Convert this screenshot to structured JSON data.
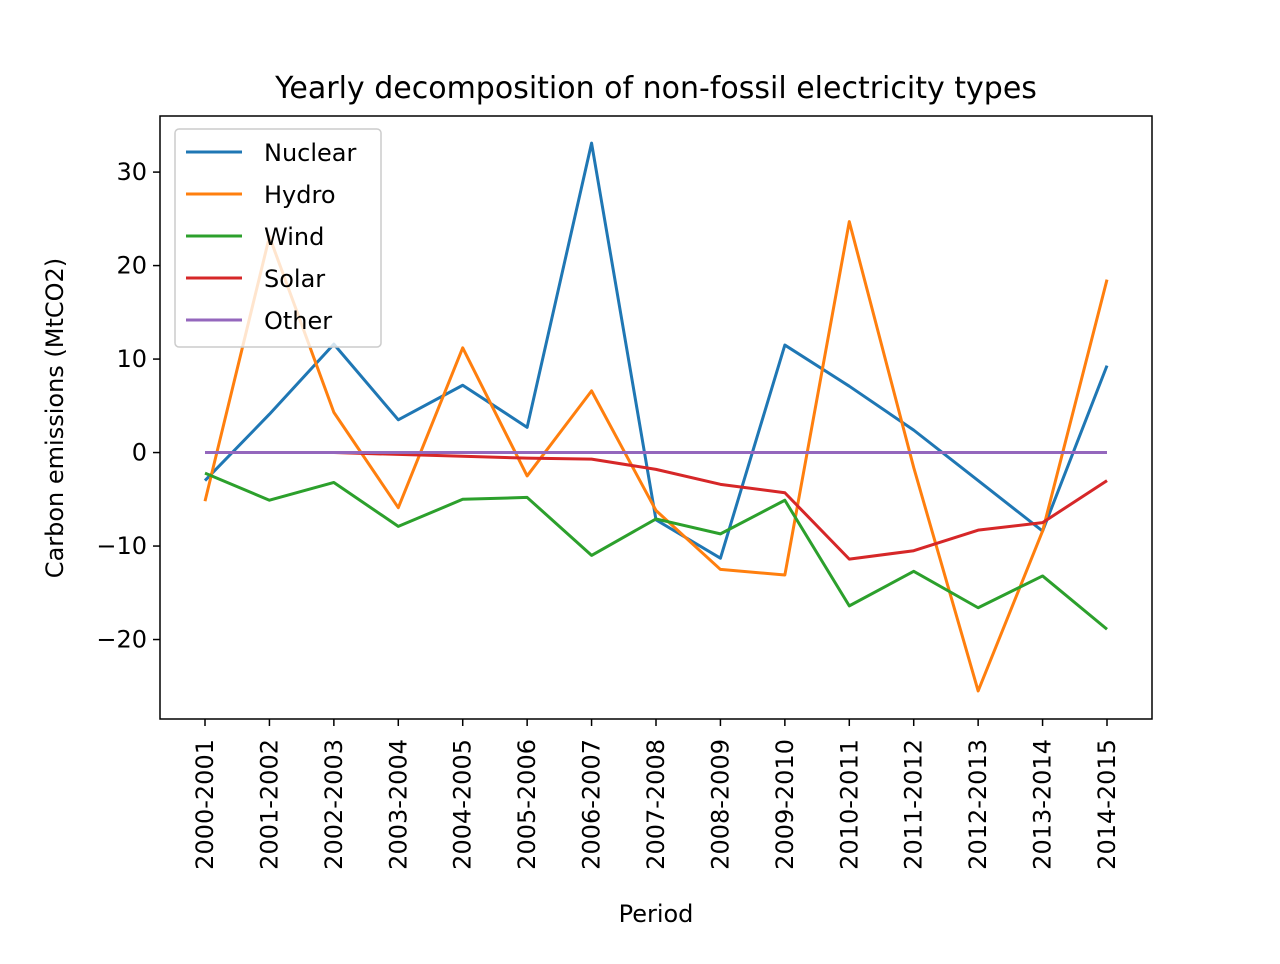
{
  "chart_data": {
    "type": "line",
    "title": "Yearly decomposition of non-fossil electricity types",
    "xlabel": "Period",
    "ylabel": "Carbon emissions (MtCO2)",
    "categories": [
      "2000-2001",
      "2001-2002",
      "2002-2003",
      "2003-2004",
      "2004-2005",
      "2005-2006",
      "2006-2007",
      "2007-2008",
      "2008-2009",
      "2009-2010",
      "2010-2011",
      "2011-2012",
      "2012-2013",
      "2013-2014",
      "2014-2015"
    ],
    "ylim": [
      -28.5,
      36
    ],
    "yticks": [
      {
        "value": 30,
        "label": "30"
      },
      {
        "value": 20,
        "label": "20"
      },
      {
        "value": 10,
        "label": "10"
      },
      {
        "value": 0,
        "label": "0"
      },
      {
        "value": -10,
        "label": "−10"
      },
      {
        "value": -20,
        "label": "−20"
      }
    ],
    "grid": false,
    "legend_position": "top-left",
    "zero_line": {
      "value": 0,
      "color": "#000000"
    },
    "series": [
      {
        "name": "Nuclear",
        "color": "#1f77b4",
        "values": [
          -3.0,
          4.1,
          11.6,
          3.5,
          7.2,
          2.7,
          33.1,
          -7.2,
          -11.3,
          11.5,
          7.1,
          2.4,
          -3.0,
          -8.4,
          9.3
        ]
      },
      {
        "name": "Hydro",
        "color": "#ff7f0e",
        "values": [
          -5.2,
          23.1,
          4.3,
          -5.9,
          11.2,
          -2.5,
          6.6,
          -6.2,
          -12.5,
          -13.1,
          24.7,
          -1.6,
          -25.5,
          -8.4,
          18.5
        ]
      },
      {
        "name": "Wind",
        "color": "#2ca02c",
        "values": [
          -2.2,
          -5.1,
          -3.2,
          -7.9,
          -5.0,
          -4.8,
          -11.0,
          -7.1,
          -8.7,
          -5.1,
          -16.4,
          -12.7,
          -16.6,
          -13.2,
          -18.9
        ]
      },
      {
        "name": "Solar",
        "color": "#d62728",
        "values": [
          0.0,
          0.0,
          0.0,
          -0.2,
          -0.4,
          -0.6,
          -0.7,
          -1.8,
          -3.4,
          -4.3,
          -11.4,
          -10.5,
          -8.3,
          -7.5,
          -3.0
        ]
      },
      {
        "name": "Other",
        "color": "#9467bd",
        "values": [
          0,
          0,
          0,
          0,
          0,
          0,
          0,
          0,
          0,
          0,
          0,
          0,
          0,
          0,
          0
        ]
      }
    ]
  }
}
